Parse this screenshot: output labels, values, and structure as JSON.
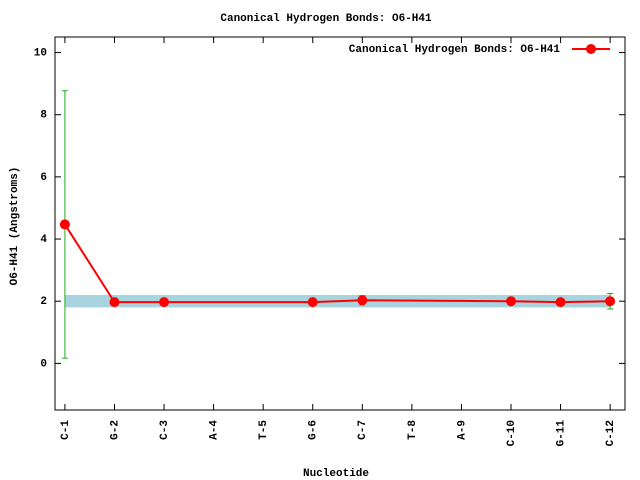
{
  "chart_data": {
    "type": "line",
    "title": "Canonical Hydrogen Bonds: O6-H41",
    "x_label": "Nucleotide",
    "y_label": "O6-H41 (Angstroms)",
    "xlim": [
      0.8,
      12.3
    ],
    "ylim": [
      -1.5,
      10.5
    ],
    "xticks": [
      {
        "value": 1,
        "label": "C-1"
      },
      {
        "value": 2,
        "label": "G-2"
      },
      {
        "value": 3,
        "label": "C-3"
      },
      {
        "value": 4,
        "label": "A-4"
      },
      {
        "value": 5,
        "label": "T-5"
      },
      {
        "value": 6,
        "label": "G-6"
      },
      {
        "value": 7,
        "label": "C-7"
      },
      {
        "value": 8,
        "label": "T-8"
      },
      {
        "value": 9,
        "label": "A-9"
      },
      {
        "value": 10,
        "label": "C-10"
      },
      {
        "value": 11,
        "label": "G-11"
      },
      {
        "value": 12,
        "label": "C-12"
      }
    ],
    "yticks": [
      0,
      2,
      4,
      6,
      8,
      10
    ],
    "band": [
      1.8,
      2.2
    ],
    "band_color": "#a8d4e0",
    "legend": "top-right",
    "series": [
      {
        "name": "Canonical Hydrogen Bonds: O6-H41",
        "color": "#ff0000",
        "error_color": "#22aa22",
        "x": [
          1,
          2,
          3,
          6,
          7,
          10,
          11,
          12
        ],
        "values": [
          4.47,
          1.97,
          1.97,
          1.97,
          2.03,
          2.0,
          1.97,
          2.0
        ],
        "errors": [
          4.3,
          0.05,
          0.05,
          0.05,
          0.15,
          0.05,
          0.05,
          0.25
        ]
      }
    ]
  }
}
